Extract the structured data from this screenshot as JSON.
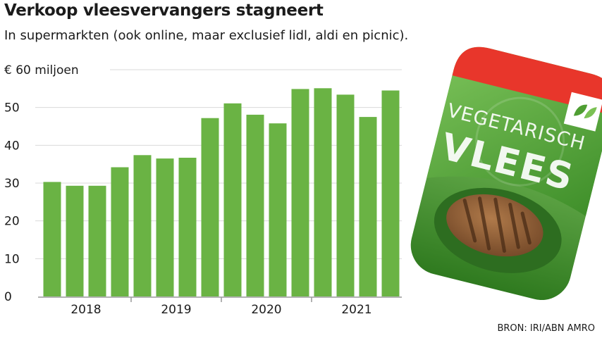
{
  "header": {
    "title": "Verkoop vleesvervangers stagneert",
    "subtitle": "In supermarkten (ook online, maar exclusief lidl, aldi en picnic)."
  },
  "source": "BRON: IRI/ABN AMRO",
  "illustration": {
    "line1": "VEGETARISCH",
    "line2": "VLEES"
  },
  "colors": {
    "bar": "#6ab344",
    "grid": "#d9d9d9",
    "axis": "#999999",
    "pack_green": "#5fae3e",
    "pack_red": "#e8362b"
  },
  "chart_data": {
    "type": "bar",
    "unit_label": "€ 60 miljoen",
    "yticks": [
      {
        "value": 0,
        "label": "0"
      },
      {
        "value": 10,
        "label": "10"
      },
      {
        "value": 20,
        "label": "20"
      },
      {
        "value": 30,
        "label": "30"
      },
      {
        "value": 40,
        "label": "40"
      },
      {
        "value": 50,
        "label": "50"
      },
      {
        "value": 60,
        "label": "€ 60 miljoen"
      }
    ],
    "ylim": [
      0,
      60
    ],
    "grid": true,
    "years": [
      "2018",
      "2019",
      "2020",
      "2021"
    ],
    "bars_per_year": 4,
    "values": [
      30.3,
      29.3,
      29.3,
      34.2,
      37.4,
      36.5,
      36.7,
      47.2,
      51.1,
      48.1,
      45.8,
      54.9,
      55.1,
      53.4,
      47.5,
      54.5
    ]
  }
}
